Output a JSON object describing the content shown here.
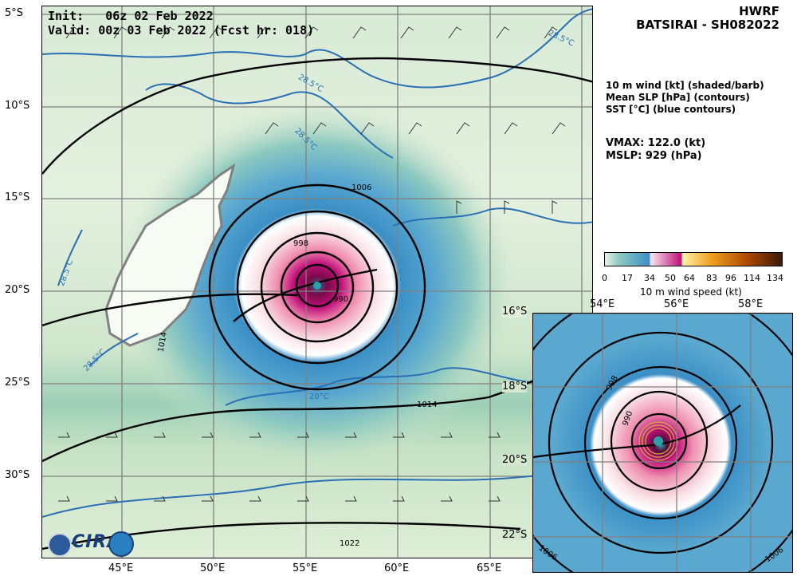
{
  "header": {
    "init_label": "Init:",
    "init_value": "06z 02 Feb 2022",
    "valid_label": "Valid:",
    "valid_value": "00z 03 Feb 2022 (Fcst hr: 018)",
    "model": "HWRF",
    "storm": "BATSIRAI - SH082022"
  },
  "legend": {
    "line1": "10 m wind [kt] (shaded/barb)",
    "line2": "Mean SLP [hPa] (contours)",
    "line3": "SST [°C] (blue contours)"
  },
  "stats": {
    "vmax": "VMAX: 122.0 (kt)",
    "mslp": "MSLP:  929 (hPa)"
  },
  "colorbar": {
    "ticks": [
      "0",
      "17",
      "34",
      "50",
      "64",
      "83",
      "96",
      "114",
      "134"
    ],
    "label": "10 m wind speed (kt)",
    "colors": [
      "#e8f2e6",
      "#3a8fc6",
      "#f6e6ea",
      "#c0107a",
      "#fff2a8",
      "#f0a020",
      "#b04a00",
      "#3a1a08"
    ]
  },
  "main_map": {
    "lat_ticks": [
      "5°S",
      "10°S",
      "15°S",
      "20°S",
      "25°S",
      "30°S"
    ],
    "lon_ticks": [
      "45°E",
      "50°E",
      "55°E",
      "60°E",
      "65°E"
    ],
    "slp_labels": [
      "1006",
      "1014",
      "1014",
      "1022",
      "998",
      "990"
    ],
    "sst_labels": [
      "28.5°C",
      "28.5°C",
      "28.5°C",
      "28.5°C",
      "28.5°C",
      "20°C"
    ]
  },
  "inset_map": {
    "lat_ticks": [
      "16°S",
      "18°S",
      "20°S",
      "22°S"
    ],
    "lon_ticks": [
      "54°E",
      "56°E",
      "58°E"
    ],
    "slp_labels": [
      "998",
      "990",
      "1006",
      "1006"
    ]
  },
  "logo": {
    "text": "CIRA"
  },
  "colors": {
    "slp_contour": "#000000",
    "sst_contour": "#2a6fb5",
    "coast": "#808080",
    "grid": "#808080"
  }
}
